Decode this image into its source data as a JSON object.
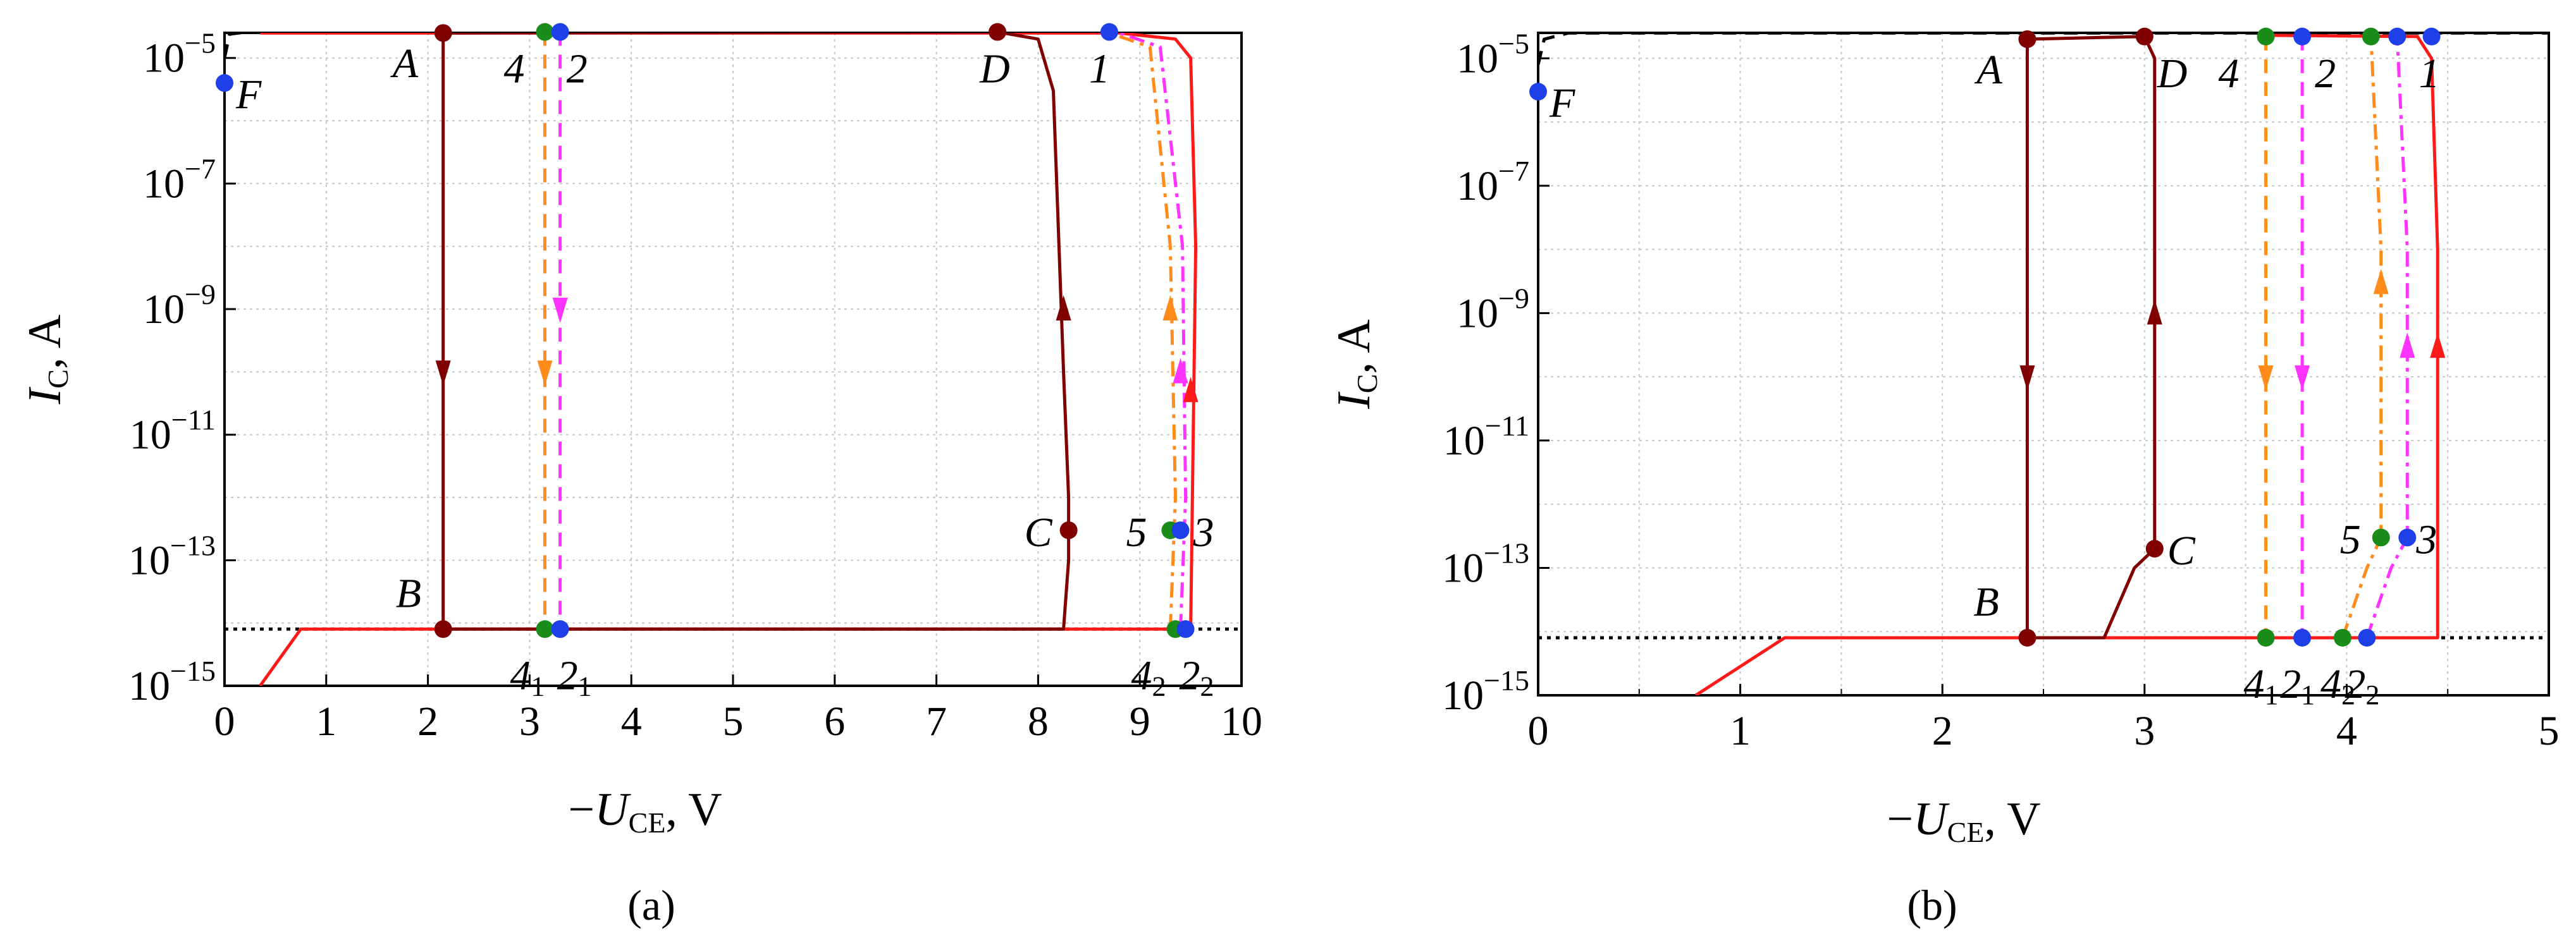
{
  "figure": {
    "panel_labels": [
      "(a)",
      "(b)"
    ]
  },
  "colors": {
    "dark_red": "#800000",
    "red": "#ff1a1a",
    "orange": "#ff8c1a",
    "magenta": "#ff33ff",
    "green": "#1a8c1a",
    "blue": "#1f3fe8",
    "black": "#000000",
    "grid": "#c8c8c8"
  },
  "chart_data": [
    {
      "type": "line",
      "panel": "(a)",
      "xlabel": "−U_CE, V",
      "ylabel": "I_C, A",
      "xlim": [
        0,
        10
      ],
      "ylim_log10": [
        -15,
        -4.6
      ],
      "y_scale": "log",
      "x_ticks": [
        "0",
        "1",
        "2",
        "3",
        "4",
        "5",
        "6",
        "7",
        "8",
        "9",
        "10"
      ],
      "y_ticks": [
        "10^-15",
        "10^-13",
        "10^-11",
        "10^-9",
        "10^-7",
        "10^-5"
      ],
      "grid": true,
      "series": [
        {
          "color": "black",
          "style": "dashed",
          "x": [
            0,
            0.05,
            0.3,
            10
          ],
          "y": [
            1e-05,
            2.4e-05,
            2.7e-05,
            2.7e-05
          ]
        },
        {
          "color": "black",
          "style": "dotted",
          "x": [
            0,
            10
          ],
          "y": [
            8e-15,
            8e-15
          ]
        },
        {
          "color": "red",
          "style": "solid",
          "x": [
            0.35,
            0.75,
            9.5,
            9.55,
            9.5,
            9.35,
            8.8,
            0.35
          ],
          "y": [
            1e-15,
            8e-15,
            8e-15,
            1e-08,
            1e-05,
            2e-05,
            2.5e-05,
            2.5e-05
          ]
        },
        {
          "color": "dark_red",
          "style": "solid",
          "x": [
            2.15,
            7.6,
            8.0,
            8.15,
            8.25,
            8.3,
            8.3,
            8.25,
            2.15,
            2.15,
            2.15
          ],
          "y": [
            2.5e-05,
            2.6e-05,
            2e-05,
            3e-06,
            1e-10,
            1e-12,
            1e-13,
            8e-15,
            8e-15,
            1e-10,
            2.5e-05
          ]
        },
        {
          "color": "orange",
          "style": "dashed",
          "x": [
            3.15,
            3.15
          ],
          "y": [
            2.6e-05,
            8e-15
          ]
        },
        {
          "color": "magenta",
          "style": "dashed",
          "x": [
            3.3,
            3.3
          ],
          "y": [
            2.6e-05,
            8e-15
          ]
        },
        {
          "color": "orange",
          "style": "dashdot",
          "x": [
            9.3,
            9.35,
            9.3,
            9.1,
            8.7
          ],
          "y": [
            8e-15,
            1e-12,
            1e-08,
            1.5e-05,
            2.5e-05
          ]
        },
        {
          "color": "magenta",
          "style": "dashdot",
          "x": [
            9.4,
            9.45,
            9.42,
            9.2,
            8.8
          ],
          "y": [
            8e-15,
            1e-12,
            1e-08,
            1.5e-05,
            2.5e-05
          ]
        }
      ],
      "points": [
        {
          "color": "dark_red",
          "x": 2.15,
          "y": 2.5e-05,
          "label": "A"
        },
        {
          "color": "dark_red",
          "x": 2.15,
          "y": 8e-15,
          "label": "B"
        },
        {
          "color": "dark_red",
          "x": 8.3,
          "y": 3e-13,
          "label": "C"
        },
        {
          "color": "dark_red",
          "x": 7.6,
          "y": 2.6e-05,
          "label": "D"
        },
        {
          "color": "green",
          "x": 3.15,
          "y": 2.6e-05,
          "label": "4"
        },
        {
          "color": "blue",
          "x": 3.3,
          "y": 2.6e-05,
          "label": "2"
        },
        {
          "color": "blue",
          "x": 8.7,
          "y": 2.6e-05,
          "label": "1"
        },
        {
          "color": "green",
          "x": 3.15,
          "y": 8e-15,
          "label": "4₁"
        },
        {
          "color": "blue",
          "x": 3.3,
          "y": 8e-15,
          "label": "2₁"
        },
        {
          "color": "green",
          "x": 9.3,
          "y": 3e-13,
          "label": "5"
        },
        {
          "color": "blue",
          "x": 9.4,
          "y": 3e-13,
          "label": "3"
        },
        {
          "color": "green",
          "x": 9.35,
          "y": 8e-15,
          "label": "4₂"
        },
        {
          "color": "blue",
          "x": 9.45,
          "y": 8e-15,
          "label": "2₂"
        },
        {
          "color": "blue",
          "x": 0,
          "y": 4e-06,
          "label": "F"
        }
      ],
      "arrows": [
        {
          "color": "dark_red",
          "x": 2.15,
          "y": 1e-10,
          "dir": "down"
        },
        {
          "color": "orange",
          "x": 3.15,
          "y": 1e-10,
          "dir": "down"
        },
        {
          "color": "magenta",
          "x": 3.3,
          "y": 1e-09,
          "dir": "down"
        },
        {
          "color": "dark_red",
          "x": 8.25,
          "y": 1e-09,
          "dir": "up"
        },
        {
          "color": "orange",
          "x": 9.3,
          "y": 1e-09,
          "dir": "up"
        },
        {
          "color": "magenta",
          "x": 9.4,
          "y": 1e-10,
          "dir": "up"
        },
        {
          "color": "red",
          "x": 9.5,
          "y": 5e-11,
          "dir": "up"
        }
      ]
    },
    {
      "type": "line",
      "panel": "(b)",
      "xlabel": "−U_CE, V",
      "ylabel": "I_C, A",
      "xlim": [
        0,
        5
      ],
      "ylim_log10": [
        -15,
        -4.6
      ],
      "y_scale": "log",
      "x_ticks": [
        "0",
        "1",
        "2",
        "3",
        "4",
        "5"
      ],
      "y_ticks": [
        "10^-15",
        "10^-13",
        "10^-11",
        "10^-9",
        "10^-7",
        "10^-5"
      ],
      "grid": true,
      "series": [
        {
          "color": "black",
          "style": "dashed",
          "x": [
            0,
            0.03,
            0.15,
            5
          ],
          "y": [
            8e-06,
            2e-05,
            2.5e-05,
            2.5e-05
          ]
        },
        {
          "color": "black",
          "style": "dotted",
          "x": [
            0,
            5
          ],
          "y": [
            8e-15,
            8e-15
          ]
        },
        {
          "color": "red",
          "style": "solid",
          "x": [
            0.78,
            1.22,
            4.45,
            4.45,
            4.42,
            4.35,
            3.6
          ],
          "y": [
            1e-15,
            8e-15,
            8e-15,
            1e-08,
            1e-05,
            2.2e-05,
            2.3e-05
          ]
        },
        {
          "color": "dark_red",
          "style": "solid",
          "x": [
            2.42,
            3.0,
            3.05,
            3.05,
            3.05,
            2.95,
            2.8,
            2.42,
            2.42,
            2.42
          ],
          "y": [
            2e-05,
            2.2e-05,
            1e-05,
            1e-08,
            2e-13,
            1e-13,
            8e-15,
            8e-15,
            1e-10,
            2e-05
          ]
        },
        {
          "color": "orange",
          "style": "dashed",
          "x": [
            3.6,
            3.6
          ],
          "y": [
            2.2e-05,
            8e-15
          ]
        },
        {
          "color": "magenta",
          "style": "dashed",
          "x": [
            3.78,
            3.78
          ],
          "y": [
            2.2e-05,
            8e-15
          ]
        },
        {
          "color": "orange",
          "style": "dashdot",
          "x": [
            3.98,
            4.1,
            4.17,
            4.17,
            4.12
          ],
          "y": [
            8e-15,
            1e-13,
            3e-13,
            1e-08,
            2.2e-05
          ]
        },
        {
          "color": "magenta",
          "style": "dashdot",
          "x": [
            4.1,
            4.22,
            4.3,
            4.3,
            4.25
          ],
          "y": [
            8e-15,
            1e-13,
            3e-13,
            1e-08,
            2.2e-05
          ]
        }
      ],
      "points": [
        {
          "color": "dark_red",
          "x": 2.42,
          "y": 2e-05,
          "label": "A"
        },
        {
          "color": "dark_red",
          "x": 2.42,
          "y": 8e-15,
          "label": "B"
        },
        {
          "color": "dark_red",
          "x": 3.05,
          "y": 2e-13,
          "label": "C"
        },
        {
          "color": "dark_red",
          "x": 3.0,
          "y": 2.2e-05,
          "label": "D"
        },
        {
          "color": "green",
          "x": 3.6,
          "y": 2.2e-05,
          "label": "4"
        },
        {
          "color": "blue",
          "x": 3.78,
          "y": 2.2e-05,
          "label": "2"
        },
        {
          "color": "blue",
          "x": 4.42,
          "y": 2.2e-05,
          "label": "1"
        },
        {
          "color": "green",
          "x": 4.12,
          "y": 2.2e-05,
          "label": ""
        },
        {
          "color": "blue",
          "x": 4.25,
          "y": 2.2e-05,
          "label": ""
        },
        {
          "color": "green",
          "x": 3.6,
          "y": 8e-15,
          "label": "4₁"
        },
        {
          "color": "blue",
          "x": 3.78,
          "y": 8e-15,
          "label": "2₁"
        },
        {
          "color": "green",
          "x": 3.98,
          "y": 8e-15,
          "label": "4₂"
        },
        {
          "color": "blue",
          "x": 4.1,
          "y": 8e-15,
          "label": "2₂"
        },
        {
          "color": "green",
          "x": 4.17,
          "y": 3e-13,
          "label": "5"
        },
        {
          "color": "blue",
          "x": 4.3,
          "y": 3e-13,
          "label": "3"
        },
        {
          "color": "blue",
          "x": 0,
          "y": 3e-06,
          "label": "F"
        }
      ],
      "arrows": [
        {
          "color": "dark_red",
          "x": 2.42,
          "y": 1e-10,
          "dir": "down"
        },
        {
          "color": "orange",
          "x": 3.6,
          "y": 1e-10,
          "dir": "down"
        },
        {
          "color": "magenta",
          "x": 3.78,
          "y": 1e-10,
          "dir": "down"
        },
        {
          "color": "dark_red",
          "x": 3.05,
          "y": 1e-09,
          "dir": "up"
        },
        {
          "color": "orange",
          "x": 4.17,
          "y": 3e-09,
          "dir": "up"
        },
        {
          "color": "magenta",
          "x": 4.3,
          "y": 3e-10,
          "dir": "up"
        },
        {
          "color": "red",
          "x": 4.45,
          "y": 3e-10,
          "dir": "up"
        }
      ]
    }
  ]
}
